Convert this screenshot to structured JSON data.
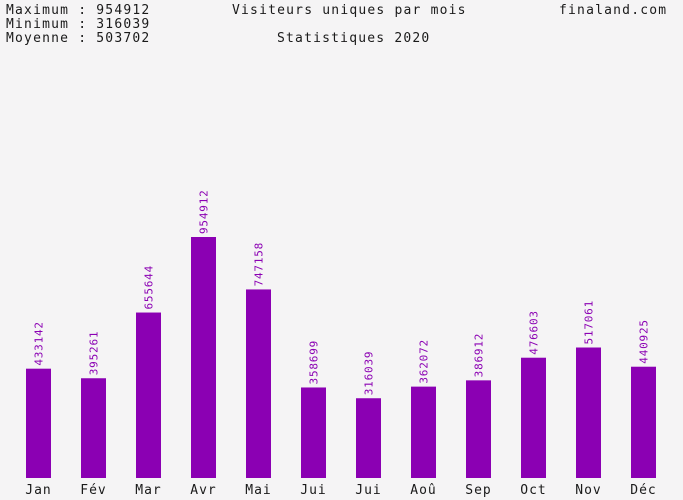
{
  "header": {
    "max_label": "Maximum",
    "max_value": "954912",
    "min_label": "Minimum",
    "min_value": "316039",
    "avg_label": "Moyenne",
    "avg_value": "503702",
    "separator": ":",
    "title": "Visiteurs uniques par mois",
    "subtitle": "Statistiques 2020",
    "site": "finaland.com"
  },
  "colors": {
    "bar": "#8b00b3",
    "value_label": "#8b00b3",
    "text": "#1a1a1a",
    "background": "#f5f4f5"
  },
  "chart_data": {
    "type": "bar",
    "title": "Visiteurs uniques par mois",
    "subtitle": "Statistiques 2020",
    "categories": [
      "Jan",
      "Fév",
      "Mar",
      "Avr",
      "Mai",
      "Jui",
      "Jui",
      "Aoû",
      "Sep",
      "Oct",
      "Nov",
      "Déc"
    ],
    "values": [
      433142,
      395261,
      655644,
      954912,
      747158,
      358699,
      316039,
      362072,
      386912,
      476603,
      517061,
      440925
    ],
    "value_labels": [
      "433142",
      "395261",
      "655644",
      "954912",
      "747158",
      "358699",
      "316039",
      "362072",
      "386912",
      "476603",
      "517061",
      "440925"
    ],
    "xlabel": "",
    "ylabel": "",
    "ylim": [
      0,
      954912
    ],
    "grid": false,
    "legend": "none"
  }
}
